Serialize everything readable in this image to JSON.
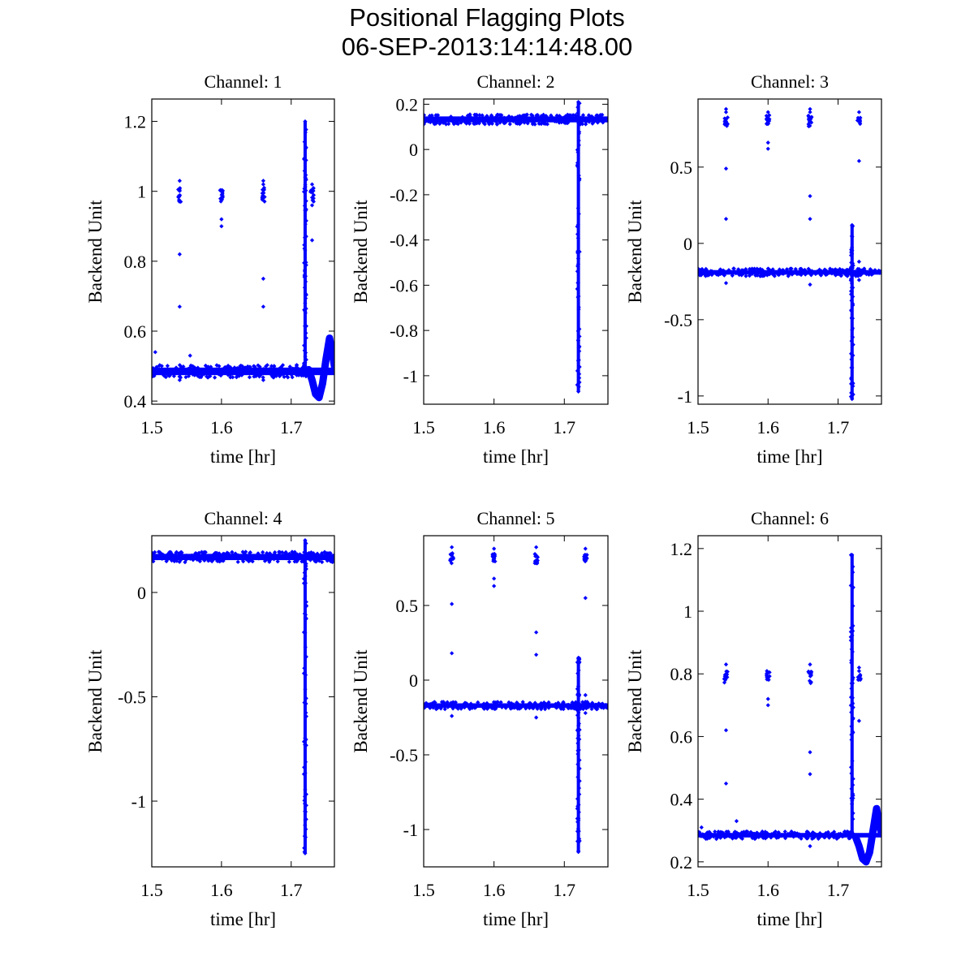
{
  "figure": {
    "title": "Positional Flagging Plots",
    "subtitle": "06-SEP-2013:14:14:48.00"
  },
  "colors": {
    "marker": "#0000ff",
    "axes": "#000000"
  },
  "chart_data": [
    {
      "type": "scatter",
      "title": "Channel: 1",
      "xlabel": "time [hr]",
      "ylabel": "Backend Unit",
      "xlim": [
        1.5,
        1.762
      ],
      "ylim": [
        0.391,
        1.264
      ],
      "xticks": [
        "1.5",
        "1.6",
        "1.7"
      ],
      "xtick_values": [
        1.5,
        1.6,
        1.7
      ],
      "yticks": [
        "0.4",
        "0.6",
        "0.8",
        "1",
        "1.2"
      ],
      "ytick_values": [
        0.4,
        0.6,
        0.8,
        1.0,
        1.2
      ],
      "baseline": {
        "level": 0.485,
        "spread": 0.018
      },
      "clusters": [
        {
          "x": 1.54,
          "y": [
            0.97,
            1.01
          ]
        },
        {
          "x": 1.6,
          "y": [
            0.97,
            1.01
          ]
        },
        {
          "x": 1.66,
          "y": [
            0.97,
            1.01
          ]
        },
        {
          "x": 1.73,
          "y": [
            0.97,
            1.01
          ]
        }
      ],
      "outliers": [
        [
          1.54,
          1.03
        ],
        [
          1.54,
          0.82
        ],
        [
          1.54,
          0.67
        ],
        [
          1.54,
          0.46
        ],
        [
          1.6,
          0.92
        ],
        [
          1.6,
          0.9
        ],
        [
          1.66,
          1.03
        ],
        [
          1.66,
          1.02
        ],
        [
          1.66,
          0.75
        ],
        [
          1.66,
          0.67
        ],
        [
          1.66,
          0.46
        ],
        [
          1.73,
          1.02
        ],
        [
          1.73,
          0.96
        ],
        [
          1.73,
          0.86
        ],
        [
          1.72,
          0.51
        ],
        [
          1.505,
          0.54
        ],
        [
          1.555,
          0.53
        ]
      ],
      "spike": {
        "x": 1.72,
        "ymin": 0.5,
        "ymax": 1.2
      },
      "dip": [
        [
          1.725,
          0.49
        ],
        [
          1.73,
          0.46
        ],
        [
          1.735,
          0.42
        ],
        [
          1.74,
          0.41
        ],
        [
          1.745,
          0.45
        ],
        [
          1.75,
          0.52
        ],
        [
          1.755,
          0.58
        ],
        [
          1.758,
          0.55
        ],
        [
          1.762,
          0.5
        ]
      ]
    },
    {
      "type": "scatter",
      "title": "Channel: 2",
      "xlabel": "time [hr]",
      "ylabel": "Backend Unit",
      "xlim": [
        1.5,
        1.762
      ],
      "ylim": [
        -1.126,
        0.223
      ],
      "xticks": [
        "1.5",
        "1.6",
        "1.7"
      ],
      "xtick_values": [
        1.5,
        1.6,
        1.7
      ],
      "yticks": [
        "0.2",
        "0",
        "-0.2",
        "-0.4",
        "-0.6",
        "-0.8",
        "-1"
      ],
      "ytick_values": [
        0.2,
        0,
        -0.2,
        -0.4,
        -0.6,
        -0.8,
        -1.0
      ],
      "baseline": {
        "level": 0.133,
        "spread": 0.022
      },
      "clusters": [],
      "outliers": [],
      "spike": {
        "x": 1.72,
        "ymin": -1.07,
        "ymax": 0.21
      },
      "dip": []
    },
    {
      "type": "scatter",
      "title": "Channel: 3",
      "xlabel": "time [hr]",
      "ylabel": "Backend Unit",
      "xlim": [
        1.5,
        1.762
      ],
      "ylim": [
        -1.054,
        0.946
      ],
      "xticks": [
        "1.5",
        "1.6",
        "1.7"
      ],
      "xtick_values": [
        1.5,
        1.6,
        1.7
      ],
      "yticks": [
        "0.5",
        "0",
        "-0.5",
        "-1"
      ],
      "ytick_values": [
        0.5,
        0,
        -0.5,
        -1.0
      ],
      "baseline": {
        "level": -0.19,
        "spread": 0.025
      },
      "clusters": [
        {
          "x": 1.54,
          "y": [
            0.76,
            0.84
          ]
        },
        {
          "x": 1.6,
          "y": [
            0.77,
            0.84
          ]
        },
        {
          "x": 1.66,
          "y": [
            0.76,
            0.84
          ]
        },
        {
          "x": 1.73,
          "y": [
            0.77,
            0.83
          ]
        }
      ],
      "outliers": [
        [
          1.54,
          0.88
        ],
        [
          1.54,
          0.86
        ],
        [
          1.54,
          0.49
        ],
        [
          1.54,
          0.16
        ],
        [
          1.54,
          -0.26
        ],
        [
          1.6,
          0.86
        ],
        [
          1.6,
          0.66
        ],
        [
          1.6,
          0.62
        ],
        [
          1.66,
          0.88
        ],
        [
          1.66,
          0.86
        ],
        [
          1.66,
          0.31
        ],
        [
          1.66,
          0.16
        ],
        [
          1.66,
          -0.27
        ],
        [
          1.73,
          0.86
        ],
        [
          1.73,
          0.54
        ],
        [
          1.73,
          -0.12
        ],
        [
          1.73,
          -0.24
        ]
      ],
      "spike": {
        "x": 1.72,
        "ymin": -1.02,
        "ymax": 0.12
      },
      "dip": []
    },
    {
      "type": "scatter",
      "title": "Channel: 4",
      "xlabel": "time [hr]",
      "ylabel": "Backend Unit",
      "xlim": [
        1.5,
        1.762
      ],
      "ylim": [
        -1.315,
        0.272
      ],
      "xticks": [
        "1.5",
        "1.6",
        "1.7"
      ],
      "xtick_values": [
        1.5,
        1.6,
        1.7
      ],
      "yticks": [
        "0",
        "-0.5",
        "-1"
      ],
      "ytick_values": [
        0,
        -0.5,
        -1.0
      ],
      "baseline": {
        "level": 0.17,
        "spread": 0.025
      },
      "clusters": [],
      "outliers": [],
      "spike": {
        "x": 1.72,
        "ymin": -1.25,
        "ymax": 0.25
      },
      "dip": []
    },
    {
      "type": "scatter",
      "title": "Channel: 5",
      "xlabel": "time [hr]",
      "ylabel": "Backend Unit",
      "xlim": [
        1.5,
        1.762
      ],
      "ylim": [
        -1.25,
        0.967
      ],
      "xticks": [
        "1.5",
        "1.6",
        "1.7"
      ],
      "xtick_values": [
        1.5,
        1.6,
        1.7
      ],
      "yticks": [
        "0.5",
        "0",
        "-0.5",
        "-1"
      ],
      "ytick_values": [
        0.5,
        0,
        -0.5,
        -1.0
      ],
      "baseline": {
        "level": -0.17,
        "spread": 0.025
      },
      "clusters": [
        {
          "x": 1.54,
          "y": [
            0.78,
            0.85
          ]
        },
        {
          "x": 1.6,
          "y": [
            0.79,
            0.85
          ]
        },
        {
          "x": 1.66,
          "y": [
            0.78,
            0.85
          ]
        },
        {
          "x": 1.73,
          "y": [
            0.79,
            0.84
          ]
        }
      ],
      "outliers": [
        [
          1.54,
          0.89
        ],
        [
          1.54,
          0.51
        ],
        [
          1.54,
          0.18
        ],
        [
          1.54,
          -0.24
        ],
        [
          1.6,
          0.88
        ],
        [
          1.6,
          0.68
        ],
        [
          1.6,
          0.63
        ],
        [
          1.66,
          0.89
        ],
        [
          1.66,
          0.32
        ],
        [
          1.66,
          0.17
        ],
        [
          1.66,
          -0.25
        ],
        [
          1.73,
          0.88
        ],
        [
          1.73,
          0.55
        ],
        [
          1.73,
          -0.1
        ],
        [
          1.73,
          -0.22
        ]
      ],
      "spike": {
        "x": 1.72,
        "ymin": -1.15,
        "ymax": 0.15
      },
      "dip": []
    },
    {
      "type": "scatter",
      "title": "Channel: 6",
      "xlabel": "time [hr]",
      "ylabel": "Backend Unit",
      "xlim": [
        1.5,
        1.762
      ],
      "ylim": [
        0.184,
        1.241
      ],
      "xticks": [
        "1.5",
        "1.6",
        "1.7"
      ],
      "xtick_values": [
        1.5,
        1.6,
        1.7
      ],
      "yticks": [
        "0.2",
        "0.4",
        "0.6",
        "0.8",
        "1",
        "1.2"
      ],
      "ytick_values": [
        0.2,
        0.4,
        0.6,
        0.8,
        1.0,
        1.2
      ],
      "baseline": {
        "level": 0.285,
        "spread": 0.012
      },
      "clusters": [
        {
          "x": 1.54,
          "y": [
            0.77,
            0.81
          ]
        },
        {
          "x": 1.6,
          "y": [
            0.78,
            0.81
          ]
        },
        {
          "x": 1.66,
          "y": [
            0.77,
            0.81
          ]
        },
        {
          "x": 1.73,
          "y": [
            0.78,
            0.81
          ]
        }
      ],
      "outliers": [
        [
          1.54,
          0.83
        ],
        [
          1.54,
          0.62
        ],
        [
          1.54,
          0.45
        ],
        [
          1.6,
          0.72
        ],
        [
          1.6,
          0.7
        ],
        [
          1.66,
          0.83
        ],
        [
          1.66,
          0.55
        ],
        [
          1.66,
          0.48
        ],
        [
          1.66,
          0.25
        ],
        [
          1.73,
          0.82
        ],
        [
          1.73,
          0.65
        ],
        [
          1.505,
          0.31
        ],
        [
          1.555,
          0.33
        ]
      ],
      "spike": {
        "x": 1.72,
        "ymin": 0.29,
        "ymax": 1.18
      },
      "dip": [
        [
          1.725,
          0.28
        ],
        [
          1.73,
          0.25
        ],
        [
          1.735,
          0.21
        ],
        [
          1.74,
          0.2
        ],
        [
          1.745,
          0.23
        ],
        [
          1.75,
          0.3
        ],
        [
          1.755,
          0.37
        ],
        [
          1.758,
          0.33
        ],
        [
          1.762,
          0.29
        ]
      ]
    }
  ]
}
